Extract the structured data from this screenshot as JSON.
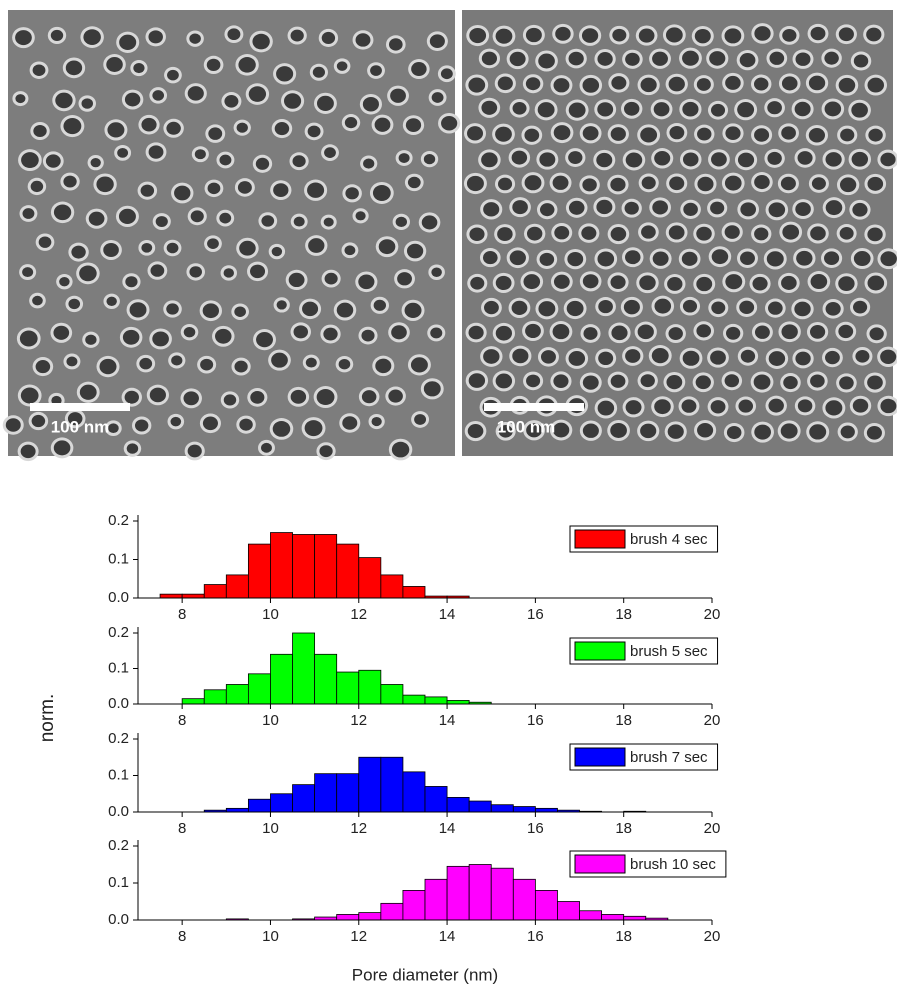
{
  "images": [
    {
      "scale_bar": "100 nm"
    },
    {
      "scale_bar": "100 nm"
    }
  ],
  "shared_axes": {
    "xlabel": "Pore diameter (nm)",
    "ylabel": "norm."
  },
  "chart_data": [
    {
      "type": "histogram",
      "legend_position": "upper right",
      "bins": [
        7,
        7.5,
        8,
        8.5,
        9,
        9.5,
        10,
        10.5,
        11,
        11.5,
        12,
        12.5,
        13,
        13.5,
        14,
        14.5,
        15,
        15.5,
        16,
        16.5,
        17,
        17.5,
        18,
        18.5,
        19,
        19.5,
        20
      ],
      "series": [
        {
          "name": "brush 4 sec",
          "color": "#ff0000",
          "values": [
            0,
            0.01,
            0.01,
            0.035,
            0.06,
            0.14,
            0.17,
            0.165,
            0.165,
            0.14,
            0.105,
            0.06,
            0.03,
            0.005,
            0.005,
            0,
            0,
            0,
            0,
            0,
            0,
            0,
            0,
            0,
            0,
            0
          ]
        }
      ],
      "xlim": [
        7,
        20
      ],
      "xticks": [
        8,
        10,
        12,
        14,
        16,
        18,
        20
      ],
      "ylim": [
        0,
        0.2
      ],
      "yticks": [
        {
          "value": 0,
          "label": "0.0"
        },
        0.1,
        0.2
      ]
    },
    {
      "type": "histogram",
      "legend_position": "upper right",
      "bins": [
        7,
        7.5,
        8,
        8.5,
        9,
        9.5,
        10,
        10.5,
        11,
        11.5,
        12,
        12.5,
        13,
        13.5,
        14,
        14.5,
        15,
        15.5,
        16,
        16.5,
        17,
        17.5,
        18,
        18.5,
        19,
        19.5,
        20
      ],
      "series": [
        {
          "name": "brush 5 sec",
          "color": "#00ff00",
          "values": [
            0,
            0,
            0.015,
            0.04,
            0.055,
            0.085,
            0.14,
            0.2,
            0.14,
            0.09,
            0.095,
            0.055,
            0.025,
            0.02,
            0.01,
            0.005,
            0,
            0,
            0,
            0,
            0,
            0,
            0,
            0,
            0,
            0
          ]
        }
      ],
      "xlim": [
        7,
        20
      ],
      "xticks": [
        8,
        10,
        12,
        14,
        16,
        18,
        20
      ],
      "ylim": [
        0,
        0.2
      ],
      "yticks": [
        {
          "value": 0,
          "label": "0.0"
        },
        0.1,
        0.2
      ]
    },
    {
      "type": "histogram",
      "legend_position": "upper right",
      "bins": [
        7,
        7.5,
        8,
        8.5,
        9,
        9.5,
        10,
        10.5,
        11,
        11.5,
        12,
        12.5,
        13,
        13.5,
        14,
        14.5,
        15,
        15.5,
        16,
        16.5,
        17,
        17.5,
        18,
        18.5,
        19,
        19.5,
        20
      ],
      "series": [
        {
          "name": "brush 7 sec",
          "color": "#0000ff",
          "values": [
            0,
            0,
            0,
            0.005,
            0.01,
            0.035,
            0.05,
            0.075,
            0.105,
            0.105,
            0.15,
            0.15,
            0.11,
            0.07,
            0.04,
            0.03,
            0.02,
            0.015,
            0.01,
            0.005,
            0.002,
            0,
            0.002,
            0,
            0,
            0
          ]
        }
      ],
      "xlim": [
        7,
        20
      ],
      "xticks": [
        8,
        10,
        12,
        14,
        16,
        18,
        20
      ],
      "ylim": [
        0,
        0.2
      ],
      "yticks": [
        {
          "value": 0,
          "label": "0.0"
        },
        0.1,
        0.2
      ]
    },
    {
      "type": "histogram",
      "legend_position": "upper right",
      "bins": [
        7,
        7.5,
        8,
        8.5,
        9,
        9.5,
        10,
        10.5,
        11,
        11.5,
        12,
        12.5,
        13,
        13.5,
        14,
        14.5,
        15,
        15.5,
        16,
        16.5,
        17,
        17.5,
        18,
        18.5,
        19,
        19.5,
        20
      ],
      "series": [
        {
          "name": "brush 10 sec",
          "color": "#ff00ff",
          "values": [
            0,
            0,
            0,
            0,
            0.003,
            0,
            0,
            0.003,
            0.008,
            0.015,
            0.02,
            0.045,
            0.08,
            0.11,
            0.145,
            0.15,
            0.14,
            0.11,
            0.08,
            0.05,
            0.025,
            0.015,
            0.01,
            0.005,
            0,
            0
          ]
        }
      ],
      "xlim": [
        7,
        20
      ],
      "xticks": [
        8,
        10,
        12,
        14,
        16,
        18,
        20
      ],
      "ylim": [
        0,
        0.2
      ],
      "yticks": [
        {
          "value": 0,
          "label": "0.0"
        },
        0.1,
        0.2
      ]
    }
  ]
}
